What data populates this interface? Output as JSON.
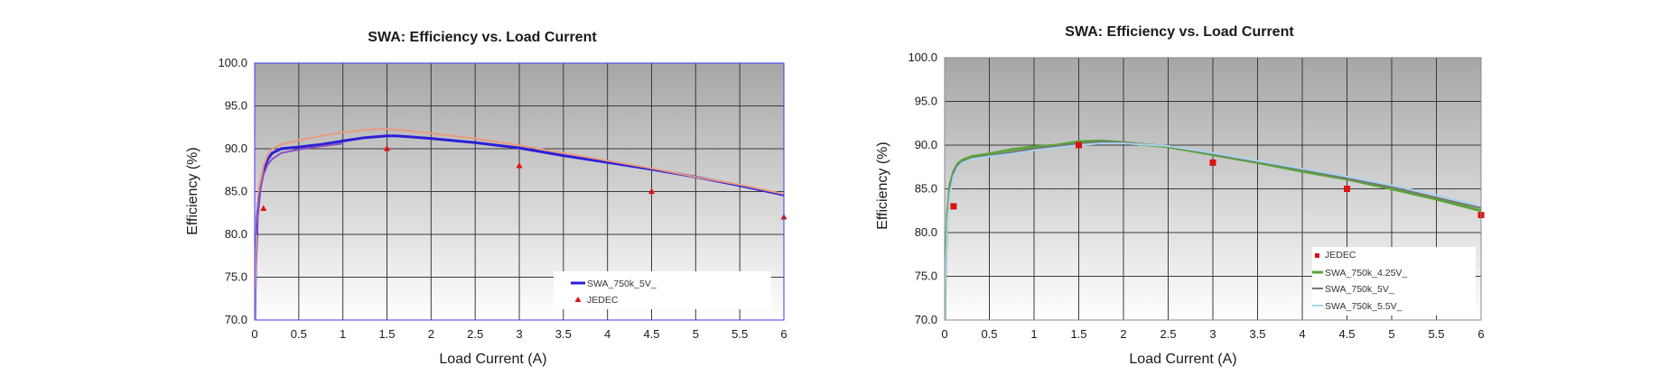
{
  "chart_data": [
    {
      "type": "line",
      "title": "SWA: Efficiency vs. Load Current",
      "xlabel": "Load Current (A)",
      "ylabel": "Efficiency (%)",
      "xlim": [
        0,
        6
      ],
      "ylim": [
        70,
        100
      ],
      "x_ticks": [
        "0",
        "0.5",
        "1",
        "1.5",
        "2",
        "2.5",
        "3",
        "3.5",
        "4",
        "4.5",
        "5",
        "5.5",
        "6"
      ],
      "y_ticks": [
        "70.0",
        "75.0",
        "80.0",
        "85.0",
        "90.0",
        "95.0",
        "100.0"
      ],
      "grid": true,
      "legend_position": "bottom-right",
      "series": [
        {
          "name": "SWA_750k_5V_",
          "color": "#2b1fd6",
          "x": [
            0.0,
            0.01,
            0.03,
            0.06,
            0.1,
            0.15,
            0.2,
            0.3,
            0.5,
            0.75,
            1.0,
            1.25,
            1.5,
            1.6,
            1.75,
            2.0,
            2.5,
            3.0,
            3.5,
            4.0,
            4.5,
            5.0,
            5.5,
            6.0
          ],
          "y": [
            70.0,
            76.0,
            82.0,
            85.5,
            87.5,
            88.8,
            89.5,
            90.0,
            90.2,
            90.5,
            90.9,
            91.3,
            91.5,
            91.5,
            91.4,
            91.2,
            90.7,
            90.1,
            89.2,
            88.4,
            87.6,
            86.7,
            85.7,
            84.6
          ]
        },
        {
          "color": "#e89a80",
          "x": [
            0.0,
            0.02,
            0.05,
            0.1,
            0.15,
            0.2,
            0.3,
            0.5,
            0.75,
            1.0,
            1.25,
            1.4,
            1.5,
            1.75,
            2.0,
            2.5,
            3.0,
            3.5,
            4.0,
            4.5,
            5.0,
            5.5,
            6.0
          ],
          "y": [
            70.0,
            80.0,
            85.5,
            88.0,
            89.3,
            90.0,
            90.5,
            91.0,
            91.5,
            91.9,
            92.2,
            92.3,
            92.3,
            92.1,
            91.8,
            91.2,
            90.4,
            89.5,
            88.6,
            87.7,
            86.7,
            85.8,
            84.7
          ]
        },
        {
          "color": "#8a4fc0",
          "x": [
            0.02,
            0.05,
            0.1,
            0.15,
            0.2,
            0.3,
            0.5,
            0.75,
            1.0
          ],
          "y": [
            80.0,
            84.5,
            87.0,
            88.2,
            88.8,
            89.5,
            89.9,
            90.3,
            90.6
          ]
        },
        {
          "name": "JEDEC",
          "color": "#dd1111",
          "marker": "triangle",
          "x": [
            0.1,
            1.5,
            3.0,
            4.5,
            6.0
          ],
          "y": [
            83.0,
            90.0,
            88.0,
            85.0,
            82.0
          ]
        }
      ]
    },
    {
      "type": "line",
      "title": "SWA: Efficiency vs. Load Current",
      "xlabel": "Load Current (A)",
      "ylabel": "Efficiency (%)",
      "xlim": [
        0,
        6
      ],
      "ylim": [
        70,
        100
      ],
      "x_ticks": [
        "0",
        "0.5",
        "1",
        "1.5",
        "2",
        "2.5",
        "3",
        "3.5",
        "4",
        "4.5",
        "5",
        "5.5",
        "6"
      ],
      "y_ticks": [
        "70.0",
        "75.0",
        "80.0",
        "85.0",
        "90.0",
        "95.0",
        "100.0"
      ],
      "grid": true,
      "legend_position": "bottom-right",
      "series": [
        {
          "name": "JEDEC",
          "color": "#dd1111",
          "marker": "square",
          "x": [
            0.1,
            1.5,
            3.0,
            4.5,
            6.0
          ],
          "y": [
            83.0,
            90.0,
            88.0,
            85.0,
            82.0
          ]
        },
        {
          "name": "SWA_750k_4.25V_",
          "color": "#5aa536",
          "x": [
            0.0,
            0.01,
            0.03,
            0.06,
            0.1,
            0.15,
            0.2,
            0.3,
            0.5,
            0.75,
            1.0,
            1.25,
            1.5,
            1.75,
            2.0,
            2.5,
            3.0,
            3.5,
            4.0,
            4.5,
            5.0,
            5.5,
            6.0
          ],
          "y": [
            70.0,
            76.0,
            82.0,
            85.5,
            87.0,
            87.9,
            88.3,
            88.7,
            89.0,
            89.5,
            89.8,
            90.0,
            90.4,
            90.5,
            90.3,
            89.8,
            88.9,
            88.0,
            87.0,
            86.1,
            85.0,
            83.8,
            82.5
          ]
        },
        {
          "name": "SWA_750k_5V_",
          "color": "#777777",
          "x": [
            0.0,
            0.01,
            0.03,
            0.06,
            0.1,
            0.15,
            0.2,
            0.3,
            0.5,
            0.75,
            1.0,
            1.25,
            1.5,
            1.75,
            2.0,
            2.5,
            3.0,
            3.5,
            4.0,
            4.5,
            5.0,
            5.5,
            6.0
          ],
          "y": [
            70.0,
            75.5,
            81.5,
            85.0,
            86.8,
            87.7,
            88.1,
            88.5,
            88.8,
            89.2,
            89.6,
            89.9,
            90.2,
            90.4,
            90.3,
            89.9,
            89.0,
            88.1,
            87.2,
            86.2,
            85.2,
            84.0,
            82.8
          ]
        },
        {
          "name": "SWA_750k_5.5V_",
          "color": "#a9d4ec",
          "x": [
            0.0,
            0.01,
            0.03,
            0.06,
            0.1,
            0.15,
            0.2,
            0.3,
            0.5,
            0.75,
            1.0,
            1.25,
            1.5,
            1.75,
            2.0,
            2.5,
            3.0,
            3.5,
            4.0,
            4.5,
            5.0,
            5.5,
            6.0
          ],
          "y": [
            70.0,
            75.0,
            81.0,
            84.5,
            86.5,
            87.5,
            88.0,
            88.4,
            88.7,
            89.0,
            89.4,
            89.7,
            90.0,
            90.2,
            90.2,
            89.9,
            89.1,
            88.2,
            87.3,
            86.4,
            85.4,
            84.3,
            83.0
          ]
        }
      ]
    }
  ]
}
